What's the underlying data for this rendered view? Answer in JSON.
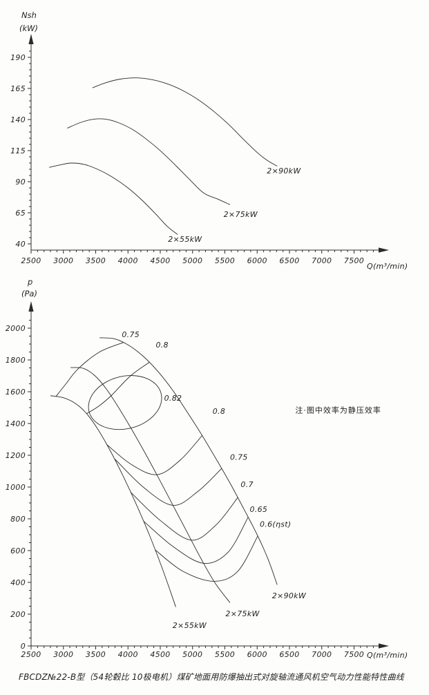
{
  "figure": {
    "caption": "FBCDZ№22-B型（54轮毂比 10极电机）煤矿地面用防爆抽出式对旋轴流通风机空气动力性能特性曲线"
  },
  "chart_data": [
    {
      "id": "power",
      "type": "line",
      "title": "Shaft power vs flow",
      "xlabel": "Q(m³/min)",
      "ylabel": [
        "Nsh",
        "(kW)"
      ],
      "x_ticks": [
        2500,
        3000,
        3500,
        4000,
        4500,
        5000,
        5500,
        6000,
        6500,
        7000,
        7500
      ],
      "x_minor_step": 100,
      "x_minor_max": 7800,
      "y_ticks": [
        40,
        65,
        90,
        115,
        140,
        165,
        190
      ],
      "y_minor_step": 5,
      "y_minor_max": 195,
      "xlim": [
        2500,
        7900
      ],
      "ylim": [
        35,
        196
      ],
      "grid": false,
      "series": [
        {
          "name": "2×55kW",
          "points": [
            [
              2780,
              101.5
            ],
            [
              2950,
              103.5
            ],
            [
              3120,
              105
            ],
            [
              3330,
              103.8
            ],
            [
              3550,
              99.5
            ],
            [
              3780,
              93
            ],
            [
              4000,
              85
            ],
            [
              4220,
              75
            ],
            [
              4430,
              64
            ],
            [
              4610,
              54
            ],
            [
              4770,
              47.5
            ]
          ]
        },
        {
          "name": "2×75kW",
          "points": [
            [
              3060,
              133
            ],
            [
              3260,
              137.5
            ],
            [
              3460,
              140.2
            ],
            [
              3650,
              140.3
            ],
            [
              3850,
              137.5
            ],
            [
              4070,
              132
            ],
            [
              4290,
              124
            ],
            [
              4510,
              114.5
            ],
            [
              4730,
              103.5
            ],
            [
              4950,
              92
            ],
            [
              5170,
              81
            ],
            [
              5390,
              76
            ],
            [
              5580,
              71.5
            ]
          ]
        },
        {
          "name": "2×90kW",
          "points": [
            [
              3450,
              165.5
            ],
            [
              3650,
              169.5
            ],
            [
              3880,
              172.5
            ],
            [
              4130,
              173.5
            ],
            [
              4380,
              172
            ],
            [
              4620,
              168.5
            ],
            [
              4860,
              163
            ],
            [
              5100,
              155.5
            ],
            [
              5330,
              146.5
            ],
            [
              5560,
              136
            ],
            [
              5780,
              124.5
            ],
            [
              6000,
              113.5
            ],
            [
              6160,
              107
            ],
            [
              6310,
              102.5
            ]
          ]
        }
      ],
      "annotations": [
        {
          "text": "2×55kW",
          "x": 4620,
          "y": 41.7
        },
        {
          "text": "2×75kW",
          "x": 5480,
          "y": 61.7
        },
        {
          "text": "2×90kW",
          "x": 6150,
          "y": 96.7
        }
      ]
    },
    {
      "id": "pressure",
      "type": "line",
      "title": "Static pressure vs flow with efficiency contours",
      "xlabel": "Q(m³/min)",
      "ylabel": [
        "p",
        "(Pa)"
      ],
      "x_ticks": [
        2500,
        3000,
        3500,
        4000,
        4500,
        5000,
        5500,
        6000,
        6500,
        7000,
        7500
      ],
      "x_minor_step": 100,
      "x_minor_max": 7800,
      "y_ticks": [
        0,
        200,
        400,
        600,
        800,
        1000,
        1200,
        1400,
        1600,
        1800,
        2000
      ],
      "y_minor_step": 50,
      "y_minor_max": 2050,
      "xlim": [
        2500,
        7900
      ],
      "ylim": [
        0,
        2150
      ],
      "grid": false,
      "series": [
        {
          "name": "2×55kW",
          "points": [
            [
              2800,
              1575
            ],
            [
              3000,
              1562
            ],
            [
              3190,
              1525
            ],
            [
              3360,
              1462
            ],
            [
              3540,
              1360
            ],
            [
              3730,
              1225
            ],
            [
              3930,
              1065
            ],
            [
              4130,
              890
            ],
            [
              4330,
              700
            ],
            [
              4520,
              500
            ],
            [
              4660,
              340
            ],
            [
              4740,
              245
            ]
          ]
        },
        {
          "name": "2×75kW",
          "points": [
            [
              3110,
              1752
            ],
            [
              3310,
              1747
            ],
            [
              3490,
              1700
            ],
            [
              3660,
              1620
            ],
            [
              3840,
              1510
            ],
            [
              4040,
              1375
            ],
            [
              4250,
              1225
            ],
            [
              4470,
              1060
            ],
            [
              4690,
              890
            ],
            [
              4910,
              720
            ],
            [
              5130,
              550
            ],
            [
              5350,
              395
            ],
            [
              5580,
              272
            ]
          ]
        },
        {
          "name": "2×90kW",
          "points": [
            [
              3560,
              1940
            ],
            [
              3800,
              1932
            ],
            [
              4020,
              1890
            ],
            [
              4250,
              1818
            ],
            [
              4480,
              1720
            ],
            [
              4700,
              1605
            ],
            [
              4920,
              1470
            ],
            [
              5140,
              1330
            ],
            [
              5360,
              1180
            ],
            [
              5580,
              1025
            ],
            [
              5790,
              865
            ],
            [
              6000,
              700
            ],
            [
              6170,
              545
            ],
            [
              6310,
              385
            ]
          ]
        }
      ],
      "contours": [
        {
          "value": "0.75",
          "branch": "upper",
          "points": [
            [
              2885,
              1570
            ],
            [
              3050,
              1655
            ],
            [
              3230,
              1745
            ],
            [
              3560,
              1850
            ],
            [
              3930,
              1910
            ]
          ]
        },
        {
          "value": "0.8",
          "branch": "upper",
          "points": [
            [
              3360,
              1462
            ],
            [
              3550,
              1510
            ],
            [
              3740,
              1575
            ],
            [
              4040,
              1700
            ],
            [
              4330,
              1785
            ]
          ]
        },
        {
          "value": "0.8",
          "branch": "lower",
          "points": [
            [
              3670,
              1268
            ],
            [
              4060,
              1140
            ],
            [
              4450,
              1078
            ],
            [
              4810,
              1170
            ],
            [
              5150,
              1325
            ]
          ]
        },
        {
          "value": "0.75",
          "branch": "lower",
          "points": [
            [
              3800,
              1175
            ],
            [
              4250,
              995
            ],
            [
              4700,
              885
            ],
            [
              5090,
              975
            ],
            [
              5450,
              1117
            ]
          ]
        },
        {
          "value": "0.7",
          "branch": "lower",
          "points": [
            [
              4040,
              968
            ],
            [
              4500,
              790
            ],
            [
              4980,
              666
            ],
            [
              5360,
              760
            ],
            [
              5700,
              934
            ]
          ]
        },
        {
          "value": "0.65",
          "branch": "lower",
          "points": [
            [
              4240,
              786
            ],
            [
              4700,
              625
            ],
            [
              5170,
              520
            ],
            [
              5550,
              590
            ],
            [
              5860,
              810
            ]
          ]
        },
        {
          "value": "0.6",
          "branch": "lower",
          "points": [
            [
              4420,
              605
            ],
            [
              4850,
              470
            ],
            [
              5330,
              407
            ],
            [
              5700,
              470
            ],
            [
              6010,
              692
            ]
          ]
        }
      ],
      "closed_contour": {
        "value": "0.82",
        "center": [
          3955,
          1532
        ],
        "rx_q": 575,
        "ry_p": 165,
        "rotate_deg": -14
      },
      "annotations": [
        {
          "text": "0.75",
          "x": 3905,
          "y": 1943
        },
        {
          "text": "0.8",
          "x": 4430,
          "y": 1878
        },
        {
          "text": "0.82",
          "x": 4560,
          "y": 1543
        },
        {
          "text": "0.8",
          "x": 5310,
          "y": 1460
        },
        {
          "text": "0.75",
          "x": 5580,
          "y": 1172
        },
        {
          "text": "0.7",
          "x": 5745,
          "y": 1000
        },
        {
          "text": "0.65",
          "x": 5885,
          "y": 843
        },
        {
          "text": "0.6(ηst)",
          "x": 6040,
          "y": 750
        },
        {
          "text": "2×55kW",
          "x": 4690,
          "y": 113
        },
        {
          "text": "2×75kW",
          "x": 5510,
          "y": 187
        },
        {
          "text": "2×90kW",
          "x": 6230,
          "y": 300
        },
        {
          "text": "注·图中效率为静压效率",
          "x": 6590,
          "y": 1468,
          "style": "note"
        }
      ]
    }
  ]
}
